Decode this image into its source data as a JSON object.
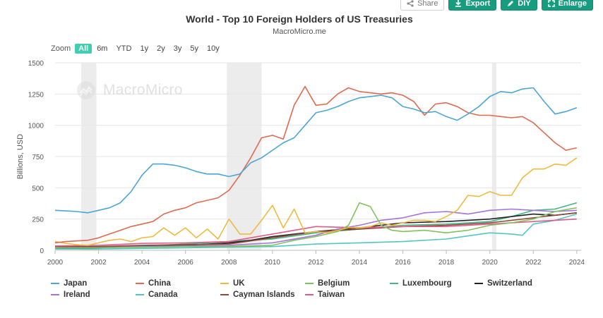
{
  "toolbar": {
    "share": "Share",
    "export": "Export",
    "diy": "DIY",
    "enlarge": "Enlarge"
  },
  "header": {
    "title": "World - Top 10 Foreign Holders of US Treasuries",
    "subtitle": "MacroMicro.me"
  },
  "zoom": {
    "label": "Zoom",
    "options": [
      "All",
      "6m",
      "YTD",
      "1y",
      "2y",
      "3y",
      "5y",
      "10y"
    ],
    "selected": "All"
  },
  "watermark": "MacroMicro",
  "chart_data": {
    "type": "line",
    "title": "World - Top 10 Foreign Holders of US Treasuries",
    "ylabel": "Billions, USD",
    "xlabel": "",
    "xlim": [
      2000,
      2024.2
    ],
    "ylim": [
      0,
      1500
    ],
    "x_ticks": [
      "2000",
      "2002",
      "2004",
      "2006",
      "2008",
      "2010",
      "2012",
      "2014",
      "2016",
      "2018",
      "2020",
      "2022",
      "2024"
    ],
    "y_ticks": [
      "0",
      "250",
      "500",
      "750",
      "1000",
      "1250",
      "1500"
    ],
    "recession_bands": [
      [
        2001.2,
        2001.9
      ],
      [
        2007.9,
        2009.5
      ],
      [
        2020.1,
        2020.3
      ]
    ],
    "legend_position": "bottom",
    "series": [
      {
        "name": "Japan",
        "color": "#4aa6d4",
        "points": [
          [
            2000,
            320
          ],
          [
            2000.5,
            315
          ],
          [
            2001,
            310
          ],
          [
            2001.5,
            300
          ],
          [
            2002,
            320
          ],
          [
            2002.5,
            340
          ],
          [
            2003,
            380
          ],
          [
            2003.5,
            470
          ],
          [
            2004,
            600
          ],
          [
            2004.5,
            690
          ],
          [
            2005,
            690
          ],
          [
            2005.5,
            680
          ],
          [
            2006,
            660
          ],
          [
            2006.5,
            630
          ],
          [
            2007,
            610
          ],
          [
            2007.5,
            610
          ],
          [
            2008,
            590
          ],
          [
            2008.5,
            610
          ],
          [
            2009,
            700
          ],
          [
            2009.5,
            740
          ],
          [
            2010,
            800
          ],
          [
            2010.5,
            860
          ],
          [
            2011,
            900
          ],
          [
            2011.5,
            1000
          ],
          [
            2012,
            1100
          ],
          [
            2012.5,
            1120
          ],
          [
            2013,
            1150
          ],
          [
            2013.5,
            1190
          ],
          [
            2014,
            1220
          ],
          [
            2014.5,
            1230
          ],
          [
            2015,
            1240
          ],
          [
            2015.5,
            1220
          ],
          [
            2016,
            1150
          ],
          [
            2016.5,
            1130
          ],
          [
            2017,
            1100
          ],
          [
            2017.5,
            1110
          ],
          [
            2018,
            1070
          ],
          [
            2018.5,
            1040
          ],
          [
            2019,
            1090
          ],
          [
            2019.5,
            1150
          ],
          [
            2020,
            1230
          ],
          [
            2020.5,
            1270
          ],
          [
            2021,
            1260
          ],
          [
            2021.5,
            1290
          ],
          [
            2022,
            1300
          ],
          [
            2022.5,
            1190
          ],
          [
            2023,
            1090
          ],
          [
            2023.5,
            1110
          ],
          [
            2024,
            1140
          ]
        ]
      },
      {
        "name": "China",
        "color": "#e06a4e",
        "points": [
          [
            2000,
            60
          ],
          [
            2000.5,
            70
          ],
          [
            2001,
            75
          ],
          [
            2001.5,
            80
          ],
          [
            2002,
            100
          ],
          [
            2002.5,
            130
          ],
          [
            2003,
            160
          ],
          [
            2003.5,
            190
          ],
          [
            2004,
            210
          ],
          [
            2004.5,
            230
          ],
          [
            2005,
            290
          ],
          [
            2005.5,
            320
          ],
          [
            2006,
            340
          ],
          [
            2006.5,
            380
          ],
          [
            2007,
            400
          ],
          [
            2007.5,
            420
          ],
          [
            2008,
            480
          ],
          [
            2008.5,
            600
          ],
          [
            2009,
            740
          ],
          [
            2009.5,
            900
          ],
          [
            2010,
            920
          ],
          [
            2010.5,
            890
          ],
          [
            2011,
            1160
          ],
          [
            2011.5,
            1310
          ],
          [
            2012,
            1160
          ],
          [
            2012.5,
            1170
          ],
          [
            2013,
            1250
          ],
          [
            2013.5,
            1300
          ],
          [
            2014,
            1270
          ],
          [
            2014.5,
            1260
          ],
          [
            2015,
            1250
          ],
          [
            2015.5,
            1260
          ],
          [
            2016,
            1240
          ],
          [
            2016.5,
            1190
          ],
          [
            2017,
            1080
          ],
          [
            2017.5,
            1170
          ],
          [
            2018,
            1180
          ],
          [
            2018.5,
            1150
          ],
          [
            2019,
            1100
          ],
          [
            2019.5,
            1080
          ],
          [
            2020,
            1080
          ],
          [
            2020.5,
            1070
          ],
          [
            2021,
            1060
          ],
          [
            2021.5,
            1070
          ],
          [
            2022,
            1020
          ],
          [
            2022.5,
            940
          ],
          [
            2023,
            860
          ],
          [
            2023.5,
            800
          ],
          [
            2024,
            820
          ]
        ]
      },
      {
        "name": "UK",
        "color": "#efbb3f",
        "points": [
          [
            2000,
            70
          ],
          [
            2000.5,
            55
          ],
          [
            2001,
            45
          ],
          [
            2001.5,
            40
          ],
          [
            2002,
            60
          ],
          [
            2002.5,
            80
          ],
          [
            2003,
            90
          ],
          [
            2003.5,
            70
          ],
          [
            2004,
            100
          ],
          [
            2004.5,
            110
          ],
          [
            2005,
            180
          ],
          [
            2005.5,
            120
          ],
          [
            2006,
            180
          ],
          [
            2006.5,
            100
          ],
          [
            2007,
            170
          ],
          [
            2007.5,
            90
          ],
          [
            2008,
            250
          ],
          [
            2008.5,
            130
          ],
          [
            2009,
            130
          ],
          [
            2009.5,
            240
          ],
          [
            2010,
            360
          ],
          [
            2010.5,
            180
          ],
          [
            2011,
            330
          ],
          [
            2011.5,
            140
          ],
          [
            2012,
            150
          ],
          [
            2012.5,
            140
          ],
          [
            2013,
            160
          ],
          [
            2013.5,
            180
          ],
          [
            2014,
            180
          ],
          [
            2014.5,
            190
          ],
          [
            2015,
            220
          ],
          [
            2015.5,
            200
          ],
          [
            2016,
            220
          ],
          [
            2016.5,
            240
          ],
          [
            2017,
            240
          ],
          [
            2017.5,
            230
          ],
          [
            2018,
            270
          ],
          [
            2018.5,
            320
          ],
          [
            2019,
            440
          ],
          [
            2019.5,
            430
          ],
          [
            2020,
            470
          ],
          [
            2020.5,
            440
          ],
          [
            2021,
            440
          ],
          [
            2021.5,
            580
          ],
          [
            2022,
            650
          ],
          [
            2022.5,
            650
          ],
          [
            2023,
            690
          ],
          [
            2023.5,
            680
          ],
          [
            2024,
            740
          ]
        ]
      },
      {
        "name": "Belgium",
        "color": "#7fc35e",
        "points": [
          [
            2000,
            20
          ],
          [
            2002,
            20
          ],
          [
            2004,
            25
          ],
          [
            2006,
            30
          ],
          [
            2008,
            30
          ],
          [
            2010,
            40
          ],
          [
            2011,
            80
          ],
          [
            2012,
            110
          ],
          [
            2013,
            150
          ],
          [
            2013.5,
            200
          ],
          [
            2014,
            380
          ],
          [
            2014.5,
            350
          ],
          [
            2015,
            200
          ],
          [
            2015.5,
            160
          ],
          [
            2016,
            150
          ],
          [
            2017,
            160
          ],
          [
            2018,
            140
          ],
          [
            2019,
            160
          ],
          [
            2020,
            200
          ],
          [
            2021,
            220
          ],
          [
            2022,
            250
          ],
          [
            2023,
            310
          ],
          [
            2024,
            340
          ]
        ]
      },
      {
        "name": "Luxembourg",
        "color": "#43b689",
        "points": [
          [
            2000,
            15
          ],
          [
            2002,
            20
          ],
          [
            2004,
            35
          ],
          [
            2006,
            50
          ],
          [
            2008,
            70
          ],
          [
            2010,
            90
          ],
          [
            2012,
            140
          ],
          [
            2014,
            170
          ],
          [
            2016,
            200
          ],
          [
            2018,
            210
          ],
          [
            2020,
            230
          ],
          [
            2021,
            270
          ],
          [
            2022,
            320
          ],
          [
            2023,
            330
          ],
          [
            2024,
            380
          ]
        ]
      },
      {
        "name": "Switzerland",
        "color": "#222222",
        "points": [
          [
            2000,
            15
          ],
          [
            2002,
            20
          ],
          [
            2004,
            30
          ],
          [
            2006,
            40
          ],
          [
            2008,
            60
          ],
          [
            2009,
            80
          ],
          [
            2010,
            110
          ],
          [
            2012,
            150
          ],
          [
            2014,
            180
          ],
          [
            2016,
            220
          ],
          [
            2018,
            230
          ],
          [
            2020,
            250
          ],
          [
            2022,
            290
          ],
          [
            2023,
            280
          ],
          [
            2024,
            300
          ]
        ]
      },
      {
        "name": "Ireland",
        "color": "#a574d4",
        "points": [
          [
            2000,
            20
          ],
          [
            2002,
            25
          ],
          [
            2004,
            30
          ],
          [
            2006,
            35
          ],
          [
            2008,
            40
          ],
          [
            2010,
            60
          ],
          [
            2012,
            120
          ],
          [
            2013,
            170
          ],
          [
            2014,
            200
          ],
          [
            2015,
            240
          ],
          [
            2016,
            260
          ],
          [
            2017,
            300
          ],
          [
            2018,
            310
          ],
          [
            2019,
            290
          ],
          [
            2020,
            320
          ],
          [
            2021,
            330
          ],
          [
            2022,
            320
          ],
          [
            2023,
            310
          ],
          [
            2024,
            320
          ]
        ]
      },
      {
        "name": "Canada",
        "color": "#52c7c2",
        "points": [
          [
            2000,
            10
          ],
          [
            2002,
            10
          ],
          [
            2004,
            15
          ],
          [
            2006,
            20
          ],
          [
            2008,
            25
          ],
          [
            2010,
            30
          ],
          [
            2012,
            50
          ],
          [
            2014,
            60
          ],
          [
            2016,
            70
          ],
          [
            2018,
            90
          ],
          [
            2020,
            140
          ],
          [
            2021,
            130
          ],
          [
            2021.5,
            120
          ],
          [
            2022,
            210
          ],
          [
            2023,
            240
          ],
          [
            2024,
            290
          ]
        ]
      },
      {
        "name": "Cayman Islands",
        "color": "#8b4a3a",
        "points": [
          [
            2000,
            30
          ],
          [
            2002,
            30
          ],
          [
            2004,
            40
          ],
          [
            2006,
            45
          ],
          [
            2008,
            50
          ],
          [
            2010,
            100
          ],
          [
            2012,
            150
          ],
          [
            2014,
            170
          ],
          [
            2016,
            190
          ],
          [
            2018,
            200
          ],
          [
            2020,
            220
          ],
          [
            2022,
            260
          ],
          [
            2024,
            300
          ]
        ]
      },
      {
        "name": "Taiwan",
        "color": "#e05a8a",
        "points": [
          [
            2000,
            35
          ],
          [
            2002,
            40
          ],
          [
            2004,
            55
          ],
          [
            2006,
            60
          ],
          [
            2008,
            70
          ],
          [
            2010,
            130
          ],
          [
            2012,
            190
          ],
          [
            2014,
            180
          ],
          [
            2016,
            190
          ],
          [
            2018,
            190
          ],
          [
            2020,
            210
          ],
          [
            2022,
            230
          ],
          [
            2023,
            240
          ],
          [
            2024,
            250
          ]
        ]
      }
    ]
  }
}
